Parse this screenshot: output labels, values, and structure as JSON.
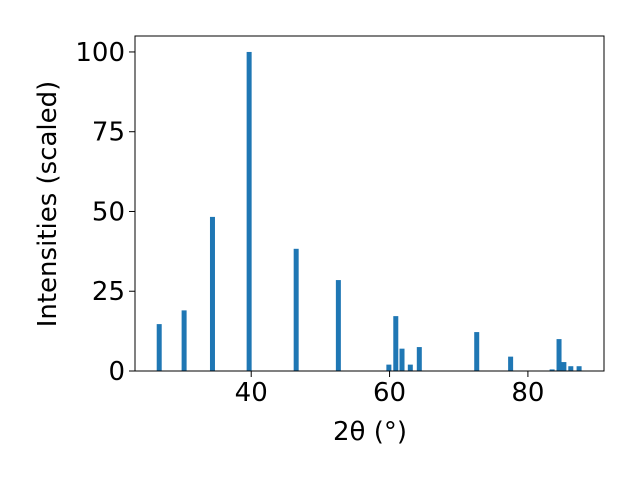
{
  "chart_data": {
    "type": "bar",
    "xlabel": "2θ (°)",
    "ylabel": "Intensities (scaled)",
    "x": [
      26.7,
      30.3,
      34.4,
      39.7,
      46.5,
      52.6,
      59.9,
      60.9,
      61.8,
      63.0,
      64.3,
      72.6,
      77.5,
      83.5,
      84.5,
      85.2,
      86.2,
      87.4
    ],
    "values": [
      14.7,
      19,
      48.3,
      100,
      38.3,
      28.5,
      2,
      17.2,
      7,
      2,
      7.5,
      12.2,
      4.5,
      0.5,
      10,
      2.8,
      1.5,
      1.5
    ],
    "color": "#1f77b4",
    "xlim": [
      23.2,
      91.0
    ],
    "xticks": [
      40,
      60,
      80
    ],
    "ylim": [
      0,
      105
    ],
    "yticks": [
      0,
      25,
      50,
      75,
      100
    ]
  }
}
